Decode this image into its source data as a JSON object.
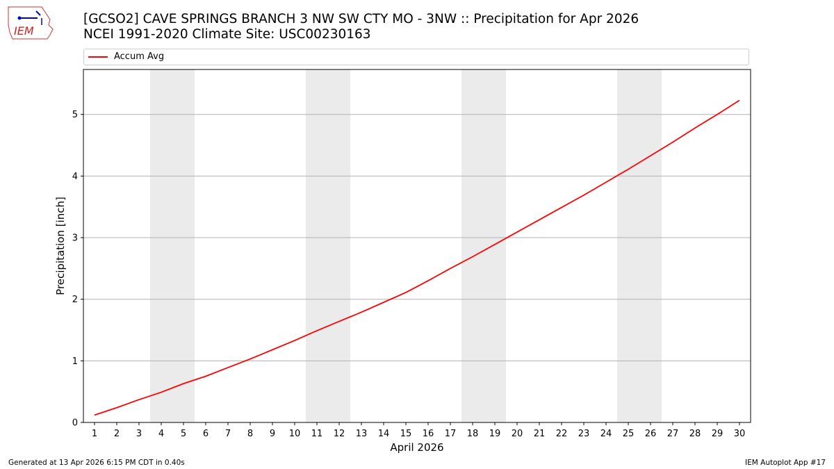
{
  "header": {
    "title_line1": "[GCSO2] CAVE SPRINGS BRANCH 3 NW SW CTY MO - 3NW :: Precipitation for Apr 2026",
    "title_line2": "NCEI 1991-2020 Climate Site: USC00230163"
  },
  "logo": {
    "text": "IEM"
  },
  "legend": {
    "items": [
      {
        "label": "Accum Avg",
        "color": "#ff0000"
      }
    ],
    "placement": "top"
  },
  "footer": {
    "generated": "Generated at 13 Apr 2026 6:15 PM CDT in 0.40s",
    "app": "IEM Autoplot App #17"
  },
  "chart_data": {
    "type": "line",
    "xlabel": "April 2026",
    "ylabel": "Precipitation [inch]",
    "x": [
      1,
      2,
      3,
      4,
      5,
      6,
      7,
      8,
      9,
      10,
      11,
      12,
      13,
      14,
      15,
      16,
      17,
      18,
      19,
      20,
      21,
      22,
      23,
      24,
      25,
      26,
      27,
      28,
      29,
      30
    ],
    "xlim": [
      0.5,
      30.5
    ],
    "ylim": [
      0,
      5.73
    ],
    "yticks": [
      0,
      1,
      2,
      3,
      4,
      5
    ],
    "grid": "y",
    "weekend_bands": [
      [
        4,
        5
      ],
      [
        11,
        12
      ],
      [
        18,
        19
      ],
      [
        25,
        26
      ]
    ],
    "series": [
      {
        "name": "Accum Avg",
        "color": "#ff0000",
        "values": [
          0.12,
          0.24,
          0.37,
          0.49,
          0.63,
          0.75,
          0.89,
          1.03,
          1.18,
          1.33,
          1.49,
          1.64,
          1.79,
          1.95,
          2.11,
          2.3,
          2.5,
          2.69,
          2.89,
          3.09,
          3.29,
          3.49,
          3.69,
          3.9,
          4.11,
          4.33,
          4.55,
          4.78,
          5.0,
          5.23
        ]
      }
    ]
  }
}
